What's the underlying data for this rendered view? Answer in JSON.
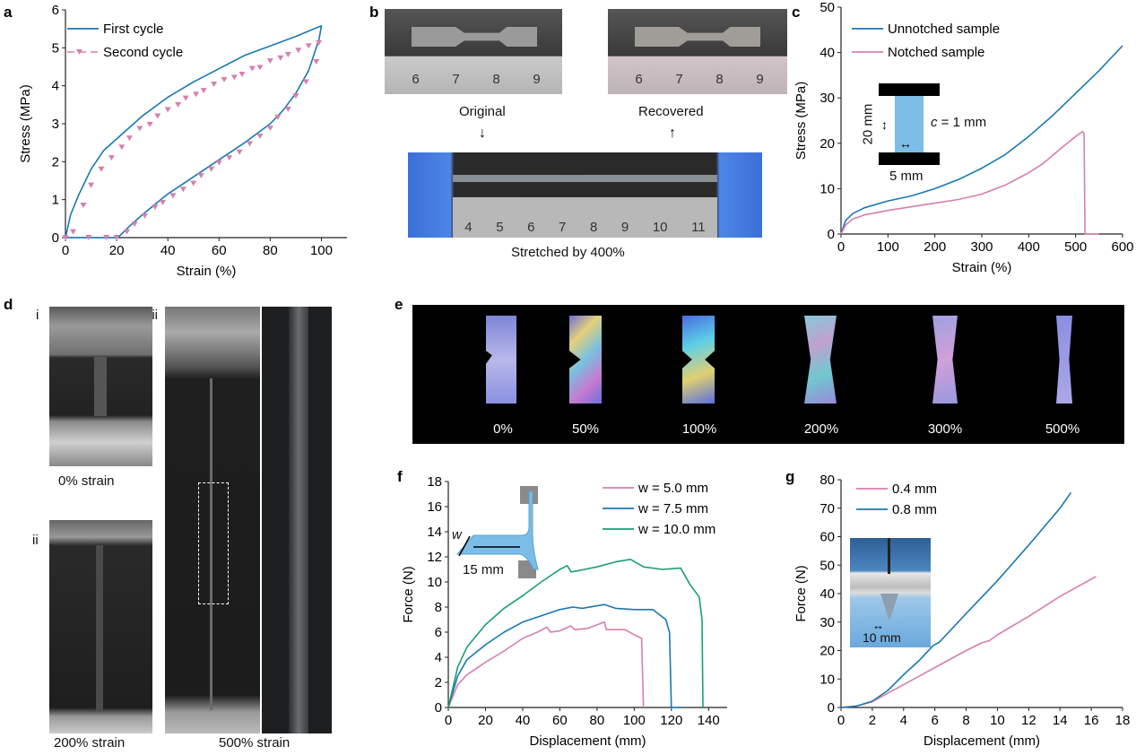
{
  "panel_labels": [
    "a",
    "b",
    "c",
    "d",
    "e",
    "f",
    "g"
  ],
  "colors": {
    "blue": "#1a78b4",
    "pink": "#d67fb0",
    "green": "#1a9e74",
    "black": "#000000",
    "inset_blue": "#7bbde6"
  },
  "panel_b": {
    "original": "Original",
    "recovered": "Recovered",
    "stretched": "Stretched by 400%",
    "ruler_top": [
      "6",
      "7",
      "8",
      "9"
    ],
    "ruler_bottom": [
      "4",
      "5",
      "6",
      "7",
      "8",
      "9",
      "10",
      "11"
    ]
  },
  "panel_d": {
    "sub": [
      "i",
      "ii",
      "iii"
    ],
    "captions": [
      "0% strain",
      "200% strain",
      "500% strain"
    ]
  },
  "panel_e": {
    "labels": [
      "0%",
      "50%",
      "100%",
      "200%",
      "300%",
      "500%"
    ]
  },
  "chart_data": [
    {
      "id": "a",
      "type": "line",
      "xlabel": "Strain (%)",
      "ylabel": "Stress (MPa)",
      "xlim": [
        0,
        110
      ],
      "ylim": [
        0,
        6
      ],
      "xticks": [
        0,
        20,
        40,
        60,
        80,
        100
      ],
      "yticks": [
        0,
        1,
        2,
        3,
        4,
        5,
        6
      ],
      "legend": "top-left",
      "series": [
        {
          "name": "First cycle",
          "color": "#1a78b4",
          "style": "line",
          "points": [
            [
              0,
              0
            ],
            [
              2,
              0.6
            ],
            [
              5,
              1.1
            ],
            [
              10,
              1.8
            ],
            [
              15,
              2.3
            ],
            [
              20,
              2.6
            ],
            [
              30,
              3.2
            ],
            [
              40,
              3.7
            ],
            [
              50,
              4.1
            ],
            [
              60,
              4.45
            ],
            [
              70,
              4.8
            ],
            [
              80,
              5.05
            ],
            [
              90,
              5.3
            ],
            [
              100,
              5.58
            ],
            [
              99,
              5.2
            ],
            [
              98,
              5
            ],
            [
              95,
              4.4
            ],
            [
              90,
              3.8
            ],
            [
              85,
              3.35
            ],
            [
              80,
              3.0
            ],
            [
              70,
              2.5
            ],
            [
              60,
              2.05
            ],
            [
              50,
              1.6
            ],
            [
              40,
              1.15
            ],
            [
              30,
              0.6
            ],
            [
              25,
              0.3
            ],
            [
              20.5,
              0
            ],
            [
              0,
              0
            ]
          ]
        },
        {
          "name": "Second cycle",
          "color": "#d67fb0",
          "style": "triangle-markers",
          "points": [
            [
              0,
              0
            ],
            [
              3,
              0.15
            ],
            [
              7,
              0.85
            ],
            [
              10,
              1.38
            ],
            [
              14,
              1.8
            ],
            [
              18,
              2.1
            ],
            [
              22,
              2.38
            ],
            [
              25,
              2.62
            ],
            [
              29,
              2.87
            ],
            [
              33,
              2.98
            ],
            [
              36,
              3.2
            ],
            [
              40,
              3.37
            ],
            [
              44,
              3.5
            ],
            [
              47,
              3.67
            ],
            [
              51,
              3.77
            ],
            [
              54,
              3.87
            ],
            [
              58,
              4.04
            ],
            [
              62,
              4.16
            ],
            [
              66,
              4.22
            ],
            [
              69,
              4.3
            ],
            [
              73,
              4.45
            ],
            [
              76,
              4.48
            ],
            [
              80,
              4.65
            ],
            [
              84,
              4.73
            ],
            [
              87,
              4.82
            ],
            [
              91,
              4.93
            ],
            [
              95,
              5.05
            ],
            [
              99,
              5.13
            ],
            [
              98,
              4.63
            ],
            [
              94,
              4.1
            ],
            [
              90,
              3.73
            ],
            [
              87,
              3.38
            ],
            [
              83,
              3.17
            ],
            [
              80,
              2.88
            ],
            [
              76,
              2.67
            ],
            [
              72,
              2.47
            ],
            [
              68,
              2.25
            ],
            [
              64,
              2.1
            ],
            [
              60,
              1.97
            ],
            [
              57,
              1.8
            ],
            [
              53,
              1.63
            ],
            [
              50,
              1.43
            ],
            [
              46,
              1.27
            ],
            [
              42,
              1.1
            ],
            [
              38,
              0.92
            ],
            [
              35,
              0.8
            ],
            [
              31,
              0.57
            ],
            [
              27,
              0.35
            ],
            [
              24,
              0.15
            ],
            [
              20,
              0
            ],
            [
              16,
              0
            ],
            [
              9,
              0
            ]
          ]
        }
      ]
    },
    {
      "id": "c",
      "type": "line",
      "xlabel": "Strain (%)",
      "ylabel": "Stress (MPa)",
      "xlim": [
        0,
        600
      ],
      "ylim": [
        0,
        50
      ],
      "xticks": [
        0,
        100,
        200,
        300,
        400,
        500,
        600
      ],
      "yticks": [
        0,
        10,
        20,
        30,
        40,
        50
      ],
      "legend": "top-left",
      "inset": {
        "height": "20 mm",
        "width": "5 mm",
        "notch_prefix": "c",
        "notch_value": " = 1 mm"
      },
      "series": [
        {
          "name": "Unnotched sample",
          "color": "#1a78b4",
          "points": [
            [
              0,
              0
            ],
            [
              10,
              3
            ],
            [
              25,
              4.5
            ],
            [
              50,
              5.8
            ],
            [
              100,
              7.3
            ],
            [
              150,
              8.4
            ],
            [
              200,
              10
            ],
            [
              250,
              12
            ],
            [
              300,
              14.5
            ],
            [
              350,
              17.5
            ],
            [
              400,
              21.5
            ],
            [
              450,
              26
            ],
            [
              500,
              31
            ],
            [
              550,
              36
            ],
            [
              600,
              41.5
            ]
          ]
        },
        {
          "name": "Notched sample",
          "color": "#d67fb0",
          "points": [
            [
              0,
              0
            ],
            [
              10,
              2
            ],
            [
              25,
              3.3
            ],
            [
              50,
              4.2
            ],
            [
              100,
              5.2
            ],
            [
              150,
              6
            ],
            [
              200,
              6.8
            ],
            [
              250,
              7.6
            ],
            [
              300,
              8.8
            ],
            [
              350,
              10.8
            ],
            [
              400,
              13.5
            ],
            [
              430,
              15.5
            ],
            [
              470,
              19
            ],
            [
              500,
              21.5
            ],
            [
              515,
              22.6
            ],
            [
              518,
              22
            ],
            [
              520,
              0
            ],
            [
              550,
              0
            ]
          ]
        }
      ]
    },
    {
      "id": "f",
      "type": "line",
      "xlabel": "Displacement (mm)",
      "ylabel": "Force (N)",
      "xlim": [
        0,
        150
      ],
      "ylim": [
        0,
        18
      ],
      "xticks": [
        0,
        20,
        40,
        60,
        80,
        100,
        120,
        140
      ],
      "yticks": [
        0,
        2,
        4,
        6,
        8,
        10,
        12,
        14,
        16,
        18
      ],
      "legend": "top-right",
      "inset": {
        "width_label": "w",
        "length_label": "15 mm"
      },
      "series": [
        {
          "name": "w = 5.0 mm",
          "color": "#d67fb0",
          "points": [
            [
              0,
              0
            ],
            [
              5,
              1.8
            ],
            [
              10,
              2.6
            ],
            [
              20,
              3.6
            ],
            [
              30,
              4.5
            ],
            [
              40,
              5.5
            ],
            [
              48,
              6.0
            ],
            [
              53,
              6.4
            ],
            [
              55,
              6.0
            ],
            [
              60,
              6.1
            ],
            [
              66,
              6.5
            ],
            [
              68,
              6.2
            ],
            [
              75,
              6.3
            ],
            [
              84,
              6.8
            ],
            [
              85,
              6.2
            ],
            [
              95,
              6.2
            ],
            [
              100,
              5.8
            ],
            [
              104,
              5.5
            ],
            [
              105,
              0
            ]
          ]
        },
        {
          "name": "w = 7.5 mm",
          "color": "#1a78b4",
          "points": [
            [
              0,
              0
            ],
            [
              5,
              2.5
            ],
            [
              10,
              3.8
            ],
            [
              20,
              5.0
            ],
            [
              30,
              6.0
            ],
            [
              40,
              6.8
            ],
            [
              50,
              7.3
            ],
            [
              60,
              7.8
            ],
            [
              67,
              8.0
            ],
            [
              72,
              7.9
            ],
            [
              84,
              8.2
            ],
            [
              90,
              7.9
            ],
            [
              100,
              7.8
            ],
            [
              110,
              7.8
            ],
            [
              117,
              7.0
            ],
            [
              119,
              6.0
            ],
            [
              120,
              0
            ],
            [
              125,
              0
            ]
          ]
        },
        {
          "name": "w = 10.0 mm",
          "color": "#1a9e74",
          "points": [
            [
              0,
              0
            ],
            [
              5,
              3.2
            ],
            [
              10,
              4.8
            ],
            [
              20,
              6.6
            ],
            [
              30,
              7.9
            ],
            [
              40,
              8.9
            ],
            [
              50,
              10
            ],
            [
              60,
              11
            ],
            [
              64,
              11.3
            ],
            [
              66,
              10.8
            ],
            [
              70,
              10.9
            ],
            [
              80,
              11.2
            ],
            [
              90,
              11.6
            ],
            [
              98,
              11.8
            ],
            [
              105,
              11.2
            ],
            [
              115,
              11
            ],
            [
              125,
              11.1
            ],
            [
              130,
              9.8
            ],
            [
              135,
              8.8
            ],
            [
              136.5,
              7
            ],
            [
              137,
              0
            ]
          ]
        }
      ]
    },
    {
      "id": "g",
      "type": "line",
      "xlabel": "Displacement (mm)",
      "ylabel": "Force (N)",
      "xlim": [
        0,
        18
      ],
      "ylim": [
        0,
        80
      ],
      "xticks": [
        0,
        2,
        4,
        6,
        8,
        10,
        12,
        14,
        16,
        18
      ],
      "yticks": [
        0,
        10,
        20,
        30,
        40,
        50,
        60,
        70,
        80
      ],
      "legend": "top-left",
      "inset": {
        "scale_label": "10 mm"
      },
      "series": [
        {
          "name": "0.4 mm",
          "color": "#d67fb0",
          "points": [
            [
              0,
              0
            ],
            [
              1,
              0.5
            ],
            [
              2,
              2
            ],
            [
              3,
              5
            ],
            [
              4,
              8
            ],
            [
              5,
              11
            ],
            [
              6,
              14
            ],
            [
              7,
              17
            ],
            [
              8,
              20
            ],
            [
              9,
              22.7
            ],
            [
              9.5,
              23.5
            ],
            [
              10,
              25.5
            ],
            [
              12,
              32
            ],
            [
              14,
              39
            ],
            [
              16.3,
              46
            ]
          ]
        },
        {
          "name": "0.8 mm",
          "color": "#1a78b4",
          "points": [
            [
              0,
              0
            ],
            [
              1,
              0.5
            ],
            [
              2,
              2.2
            ],
            [
              3,
              6
            ],
            [
              4,
              11.5
            ],
            [
              5,
              16.5
            ],
            [
              5.9,
              21.8
            ],
            [
              6.3,
              23
            ],
            [
              8,
              33
            ],
            [
              10,
              44.5
            ],
            [
              12,
              57
            ],
            [
              14,
              70
            ],
            [
              14.7,
              75.5
            ]
          ]
        }
      ]
    }
  ]
}
